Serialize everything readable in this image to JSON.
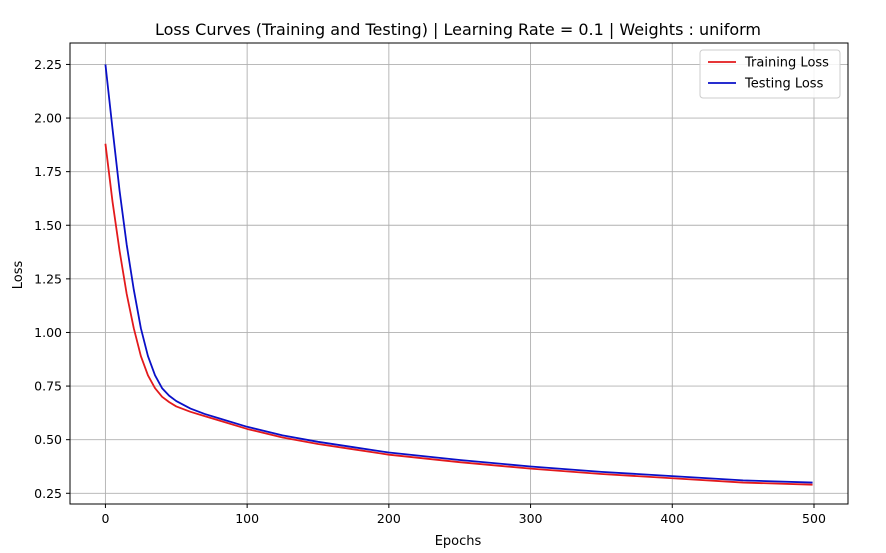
{
  "chart_data": {
    "type": "line",
    "title": "Loss Curves (Training and Testing) | Learning Rate = 0.1 | Weights : uniform",
    "xlabel": "Epochs",
    "ylabel": "Loss",
    "xlim": [
      -25,
      524
    ],
    "ylim": [
      0.2,
      2.35
    ],
    "xticks": [
      0,
      100,
      200,
      300,
      400,
      500
    ],
    "yticks": [
      0.25,
      0.5,
      0.75,
      1.0,
      1.25,
      1.5,
      1.75,
      2.0,
      2.25
    ],
    "xtick_labels": [
      "0",
      "100",
      "200",
      "300",
      "400",
      "500"
    ],
    "ytick_labels": [
      "0.25",
      "0.50",
      "0.75",
      "1.00",
      "1.25",
      "1.50",
      "1.75",
      "2.00",
      "2.25"
    ],
    "grid": true,
    "legend_position": "top-right",
    "series": [
      {
        "name": "Training Loss",
        "color": "#e31a1c",
        "x": [
          0,
          5,
          10,
          15,
          20,
          25,
          30,
          35,
          40,
          45,
          50,
          60,
          70,
          80,
          100,
          125,
          150,
          175,
          200,
          250,
          300,
          350,
          400,
          450,
          499
        ],
        "values": [
          1.88,
          1.61,
          1.38,
          1.18,
          1.02,
          0.89,
          0.8,
          0.74,
          0.7,
          0.675,
          0.655,
          0.63,
          0.61,
          0.59,
          0.55,
          0.51,
          0.48,
          0.455,
          0.43,
          0.395,
          0.365,
          0.34,
          0.32,
          0.3,
          0.29
        ]
      },
      {
        "name": "Testing Loss",
        "color": "#0a10c8",
        "x": [
          0,
          5,
          10,
          15,
          20,
          25,
          30,
          35,
          40,
          45,
          50,
          60,
          70,
          80,
          100,
          125,
          150,
          175,
          200,
          250,
          300,
          350,
          400,
          450,
          499
        ],
        "values": [
          2.25,
          1.95,
          1.66,
          1.41,
          1.2,
          1.02,
          0.89,
          0.8,
          0.74,
          0.705,
          0.68,
          0.645,
          0.62,
          0.6,
          0.56,
          0.52,
          0.49,
          0.465,
          0.44,
          0.405,
          0.375,
          0.35,
          0.33,
          0.31,
          0.3
        ]
      }
    ]
  }
}
